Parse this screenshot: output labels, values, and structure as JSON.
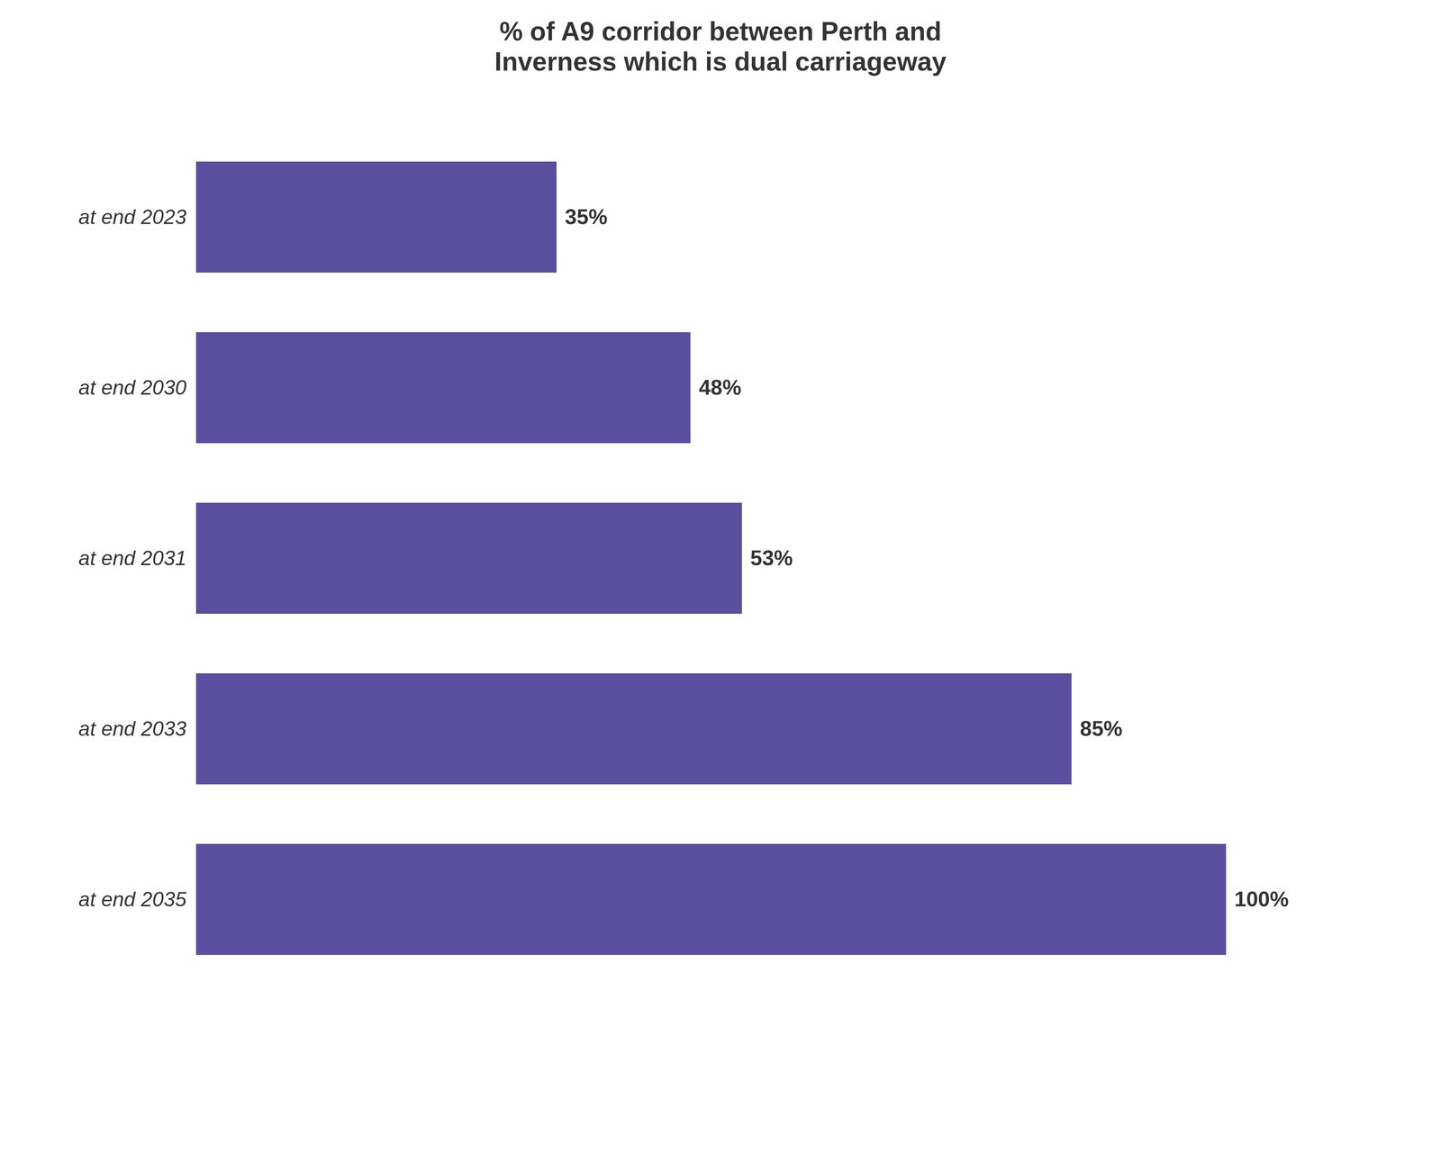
{
  "chart_data": {
    "type": "bar",
    "orientation": "horizontal",
    "title": "% of A9 corridor between Perth and\nInverness which is dual carriageway",
    "categories": [
      "at end 2023",
      "at end 2030",
      "at end 2031",
      "at end 2033",
      "at end 2035"
    ],
    "values": [
      35,
      48,
      53,
      85,
      100
    ],
    "value_labels": [
      "35%",
      "48%",
      "53%",
      "85%",
      "100%"
    ],
    "data_labels": true,
    "color": "#5a4e9e",
    "xlim": [
      0,
      115
    ],
    "tick_labels": "y",
    "grid": false
  }
}
